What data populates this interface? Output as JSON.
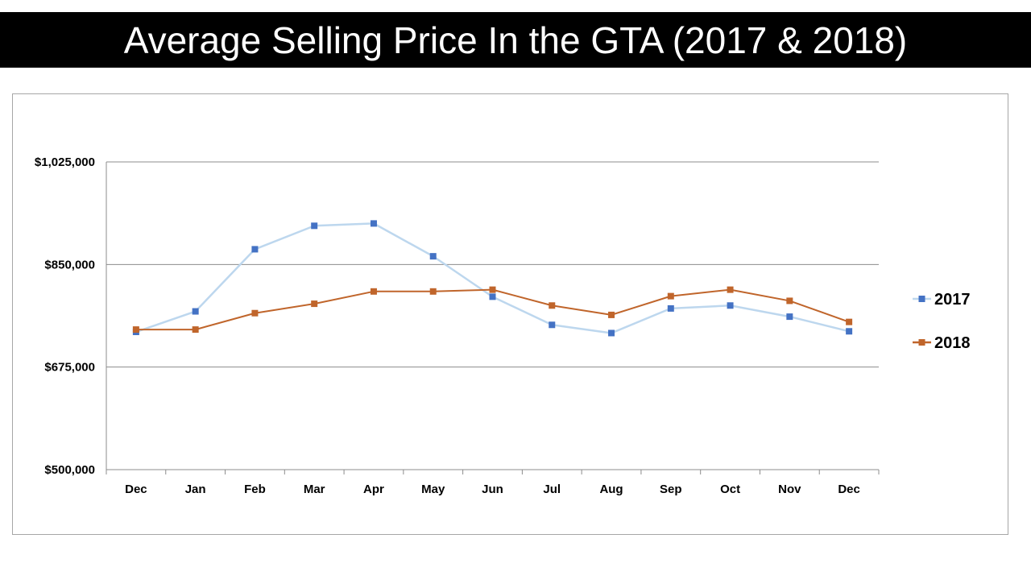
{
  "title": "Average Selling Price In the GTA (2017 & 2018)",
  "chart_data": {
    "type": "line",
    "title": "",
    "xlabel": "",
    "ylabel": "",
    "categories": [
      "Dec",
      "Jan",
      "Feb",
      "Mar",
      "Apr",
      "May",
      "Jun",
      "Jul",
      "Aug",
      "Sep",
      "Oct",
      "Nov",
      "Dec"
    ],
    "y_ticks": [
      "$500,000",
      "$675,000",
      "$850,000",
      "$1,025,000"
    ],
    "y_tick_values": [
      500000,
      675000,
      850000,
      1025000
    ],
    "ylim": [
      500000,
      1025000
    ],
    "grid": true,
    "legend": "right",
    "series": [
      {
        "name": "2017",
        "line_color": "#bdd7ee",
        "marker_color": "#4472c4",
        "values": [
          735000,
          770000,
          876000,
          916000,
          920000,
          864000,
          795000,
          747000,
          733000,
          775000,
          780000,
          761000,
          736000
        ]
      },
      {
        "name": "2018",
        "line_color": "#c0652b",
        "marker_color": "#c0652b",
        "values": [
          739000,
          739000,
          767000,
          783000,
          804000,
          804000,
          807000,
          780000,
          764000,
          796000,
          807000,
          788000,
          752000
        ]
      }
    ]
  }
}
